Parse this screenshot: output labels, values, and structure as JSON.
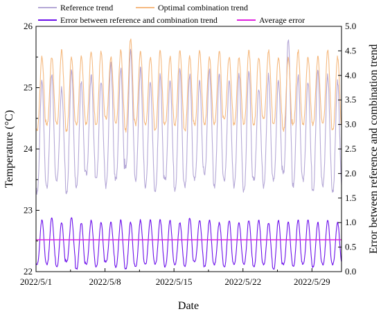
{
  "chart_data": {
    "type": "line",
    "title": "",
    "xlabel": "Date",
    "ylabel_left": "Temperature (°C)",
    "ylabel_right": "Error between reference and combination trend",
    "x_ticks": [
      "2022/5/1",
      "2022/5/8",
      "2022/5/15",
      "2022/5/22",
      "2022/5/29"
    ],
    "x_range": [
      "2022/5/1",
      "2022/6/1"
    ],
    "y_left_range": [
      22,
      26
    ],
    "y_left_ticks": [
      "22",
      "23",
      "24",
      "25",
      "26"
    ],
    "y_right_range": [
      0.0,
      5.0
    ],
    "y_right_ticks": [
      "0.0",
      "0.5",
      "1.0",
      "1.5",
      "2.0",
      "2.5",
      "3.0",
      "3.5",
      "4.0",
      "4.5",
      "5.0"
    ],
    "grid": false,
    "legend_position": "top",
    "samples_per_day": 24,
    "series": [
      {
        "name": "Reference trend",
        "axis": "left",
        "color": "#b4a7d6",
        "daily_min": [
          23.3,
          23.4,
          23.5,
          23.3,
          23.4,
          23.6,
          23.5,
          23.4,
          23.5,
          23.7,
          23.5,
          23.4,
          23.3,
          23.5,
          23.3,
          23.4,
          23.5,
          23.6,
          23.4,
          23.5,
          23.4,
          23.3,
          23.5,
          23.4,
          23.5,
          23.6,
          23.4,
          23.5,
          23.3,
          23.4,
          23.3
        ],
        "daily_max": [
          25.1,
          25.2,
          25.0,
          25.3,
          25.1,
          25.2,
          25.1,
          25.4,
          25.3,
          25.6,
          25.3,
          25.1,
          25.2,
          25.1,
          25.3,
          25.2,
          25.1,
          25.3,
          25.2,
          25.1,
          25.2,
          25.3,
          25.0,
          25.2,
          25.1,
          25.8,
          25.2,
          25.1,
          25.3,
          25.2,
          25.1
        ]
      },
      {
        "name": "Optimal combination trend",
        "axis": "left",
        "color": "#f5b97f",
        "daily_min": [
          24.3,
          24.4,
          24.4,
          24.3,
          24.4,
          24.4,
          24.4,
          24.5,
          24.4,
          24.3,
          24.4,
          24.4,
          24.3,
          24.4,
          24.4,
          24.3,
          24.4,
          24.4,
          24.4,
          24.5,
          24.4,
          24.4,
          24.4,
          24.5,
          24.4,
          24.3,
          24.4,
          24.4,
          24.4,
          24.4,
          24.3
        ],
        "daily_max": [
          25.5,
          25.5,
          25.6,
          25.5,
          25.5,
          25.6,
          25.6,
          25.5,
          25.6,
          25.8,
          25.6,
          25.5,
          25.6,
          25.5,
          25.6,
          25.5,
          25.6,
          25.5,
          25.6,
          25.5,
          25.5,
          25.6,
          25.5,
          25.6,
          25.5,
          25.5,
          25.6,
          25.5,
          25.5,
          25.6,
          25.5
        ]
      },
      {
        "name": "Error between reference and combination trend",
        "axis": "right",
        "color": "#6a0dea",
        "daily_min": [
          0.15,
          0.15,
          0.1,
          0.2,
          0.05,
          0.15,
          0.1,
          0.2,
          0.1,
          0.05,
          0.1,
          0.15,
          0.15,
          0.1,
          0.15,
          0.1,
          0.2,
          0.1,
          0.15,
          0.1,
          0.15,
          0.15,
          0.1,
          0.15,
          0.05,
          0.15,
          0.1,
          0.15,
          0.1,
          0.15,
          0.15
        ],
        "daily_max": [
          1.05,
          1.1,
          1.0,
          1.1,
          1.0,
          1.05,
          1.0,
          1.0,
          1.05,
          1.0,
          1.05,
          1.05,
          1.05,
          1.05,
          1.0,
          1.1,
          1.05,
          1.05,
          1.0,
          1.05,
          1.0,
          1.05,
          1.05,
          1.0,
          1.05,
          1.0,
          1.05,
          1.05,
          1.0,
          1.05,
          1.0
        ]
      },
      {
        "name": "Average error",
        "axis": "right",
        "color": "#e020e0",
        "value": 0.65
      }
    ]
  }
}
